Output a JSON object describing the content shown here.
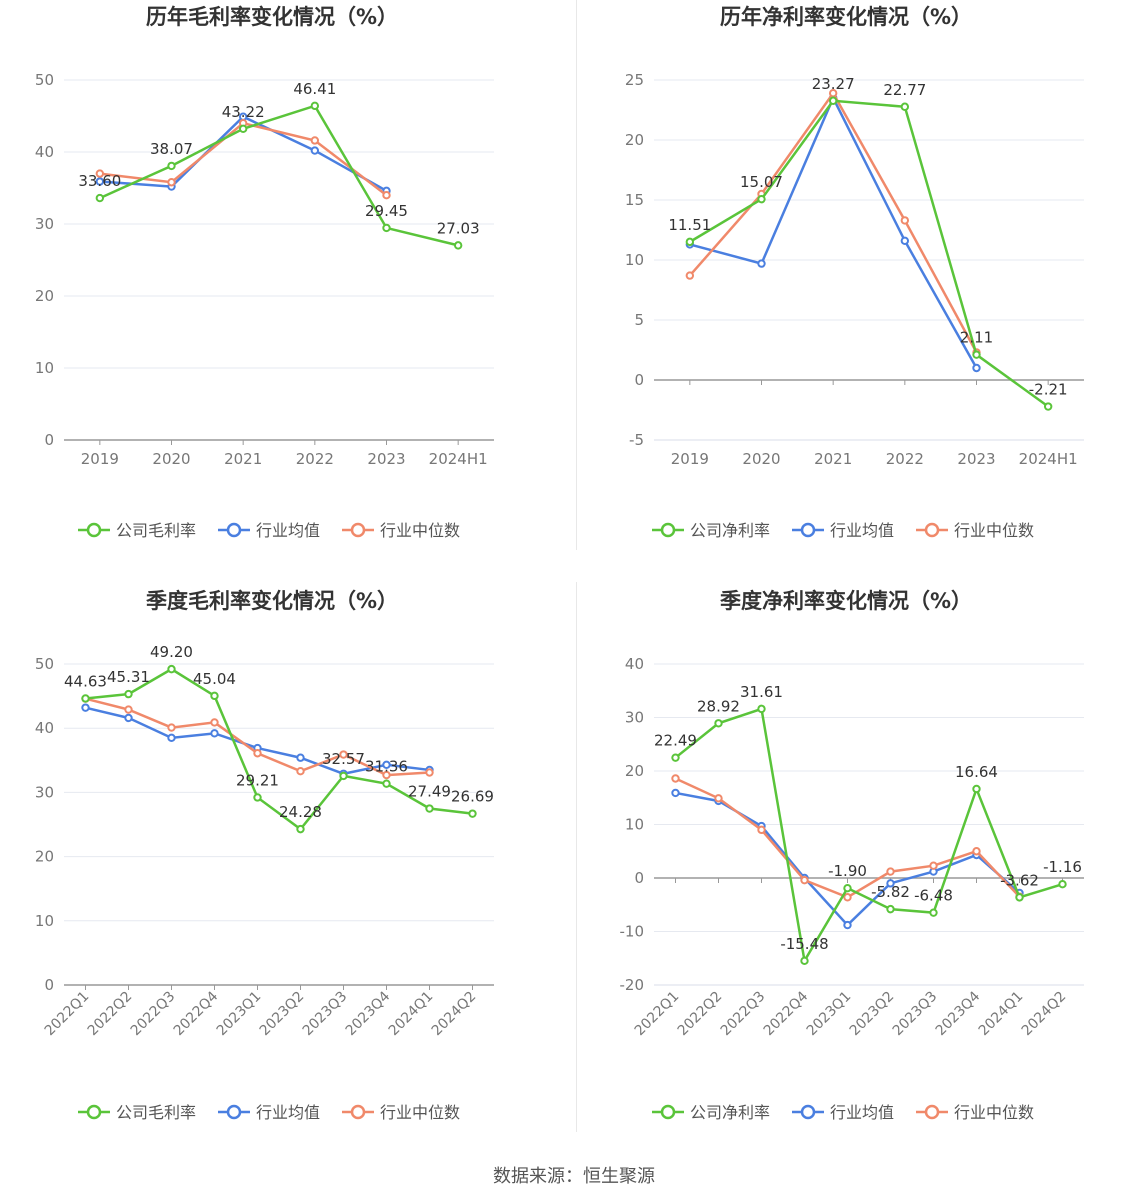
{
  "source": "数据来源：恒生聚源",
  "colors": {
    "company": "#5ac43a",
    "avg": "#4a7fe0",
    "median": "#f0896a"
  },
  "chart_data": [
    {
      "type": "line",
      "title": "历年毛利率变化情况（%）",
      "categories": [
        "2019",
        "2020",
        "2021",
        "2022",
        "2023",
        "2024H1"
      ],
      "ylim": [
        0,
        50
      ],
      "yticks": [
        0,
        10,
        20,
        30,
        40,
        50
      ],
      "legend": [
        "公司毛利率",
        "行业均值",
        "行业中位数"
      ],
      "series": [
        {
          "name": "公司毛利率",
          "values": [
            33.6,
            38.07,
            43.22,
            46.41,
            29.45,
            27.03
          ]
        },
        {
          "name": "行业均值",
          "values": [
            35.9,
            35.2,
            44.9,
            40.2,
            34.6,
            null
          ]
        },
        {
          "name": "行业中位数",
          "values": [
            37.0,
            35.8,
            44.0,
            41.6,
            34.0,
            null
          ]
        }
      ],
      "labels": [
        "33.60",
        "38.07",
        "43.22",
        "46.41",
        "29.45",
        "27.03"
      ]
    },
    {
      "type": "line",
      "title": "历年净利率变化情况（%）",
      "categories": [
        "2019",
        "2020",
        "2021",
        "2022",
        "2023",
        "2024H1"
      ],
      "ylim": [
        -5,
        25
      ],
      "yticks": [
        -5,
        0,
        5,
        10,
        15,
        20,
        25
      ],
      "legend": [
        "公司净利率",
        "行业均值",
        "行业中位数"
      ],
      "series": [
        {
          "name": "公司净利率",
          "values": [
            11.51,
            15.07,
            23.27,
            22.77,
            2.11,
            -2.21
          ]
        },
        {
          "name": "行业均值",
          "values": [
            11.3,
            9.7,
            23.5,
            11.6,
            1.0,
            null
          ]
        },
        {
          "name": "行业中位数",
          "values": [
            8.7,
            15.5,
            23.9,
            13.3,
            2.3,
            null
          ]
        }
      ],
      "labels": [
        "11.51",
        "15.07",
        "23.27",
        "22.77",
        "2.11",
        "-2.21"
      ]
    },
    {
      "type": "line",
      "title": "季度毛利率变化情况（%）",
      "categories": [
        "2022Q1",
        "2022Q2",
        "2022Q3",
        "2022Q4",
        "2023Q1",
        "2023Q2",
        "2023Q3",
        "2023Q4",
        "2024Q1",
        "2024Q2"
      ],
      "ylim": [
        0,
        50
      ],
      "yticks": [
        0,
        10,
        20,
        30,
        40,
        50
      ],
      "legend": [
        "公司毛利率",
        "行业均值",
        "行业中位数"
      ],
      "series": [
        {
          "name": "公司毛利率",
          "values": [
            44.63,
            45.31,
            49.2,
            45.04,
            29.21,
            24.28,
            32.57,
            31.36,
            27.49,
            26.69
          ]
        },
        {
          "name": "行业均值",
          "values": [
            43.2,
            41.6,
            38.5,
            39.2,
            36.9,
            35.4,
            32.9,
            34.3,
            33.5,
            null
          ]
        },
        {
          "name": "行业中位数",
          "values": [
            44.6,
            42.9,
            40.1,
            40.9,
            36.1,
            33.3,
            35.9,
            32.7,
            33.1,
            null
          ]
        }
      ],
      "labels": [
        "44.63",
        "45.31",
        "49.20",
        "45.04",
        "29.21",
        "24.28",
        "32.57",
        "31.36",
        "27.49",
        "26.69"
      ]
    },
    {
      "type": "line",
      "title": "季度净利率变化情况（%）",
      "categories": [
        "2022Q1",
        "2022Q2",
        "2022Q3",
        "2022Q4",
        "2023Q1",
        "2023Q2",
        "2023Q3",
        "2023Q4",
        "2024Q1",
        "2024Q2"
      ],
      "ylim": [
        -20,
        40
      ],
      "yticks": [
        -20,
        -10,
        0,
        10,
        20,
        30,
        40
      ],
      "legend": [
        "公司净利率",
        "行业均值",
        "行业中位数"
      ],
      "series": [
        {
          "name": "公司净利率",
          "values": [
            22.49,
            28.92,
            31.61,
            -15.48,
            -1.9,
            -5.82,
            -6.48,
            16.64,
            -3.62,
            -1.16
          ]
        },
        {
          "name": "行业均值",
          "values": [
            15.9,
            14.4,
            9.7,
            0.0,
            -8.8,
            -1.0,
            1.2,
            4.3,
            -2.8,
            null
          ]
        },
        {
          "name": "行业中位数",
          "values": [
            18.6,
            14.9,
            9.0,
            -0.4,
            -3.6,
            1.2,
            2.3,
            5.0,
            -3.5,
            null
          ]
        }
      ],
      "labels": [
        "22.49",
        "28.92",
        "31.61",
        "-15.48",
        "-1.90",
        "-5.82",
        "-6.48",
        "16.64",
        "-3.62",
        "-1.16"
      ]
    }
  ]
}
